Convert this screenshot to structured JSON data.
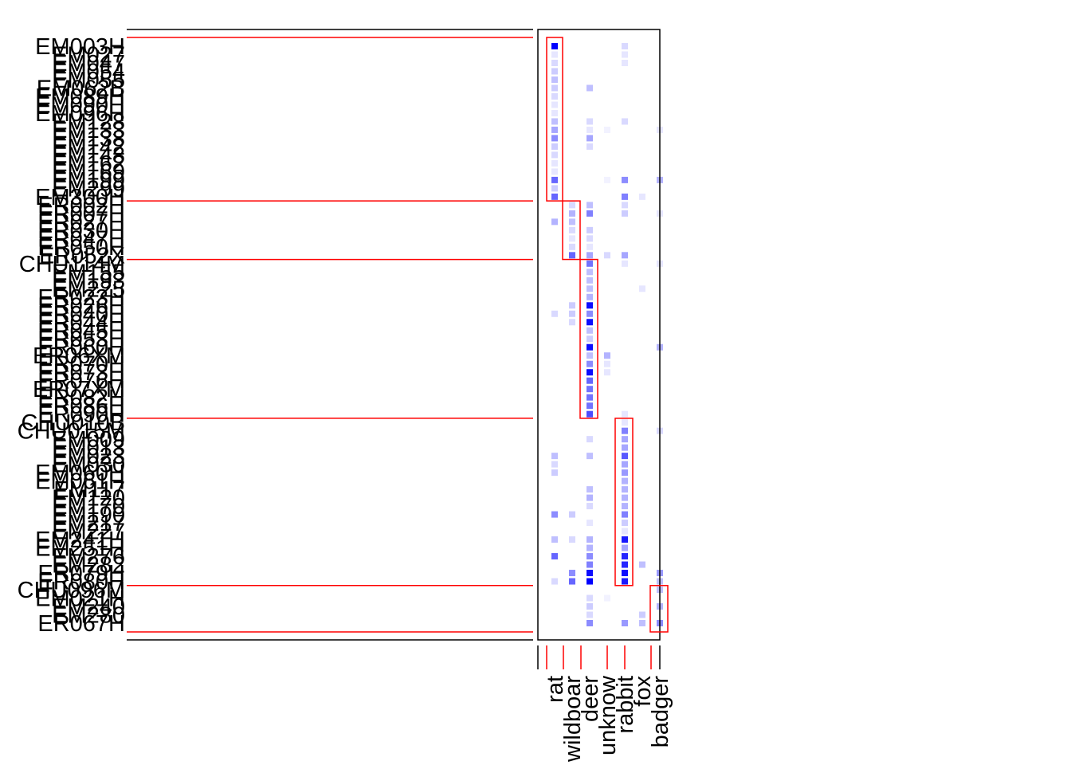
{
  "chart_data": {
    "type": "heatmap",
    "columns": [
      "rat",
      "wildboar",
      "deer",
      "unknow",
      "rabbit",
      "fox",
      "badger"
    ],
    "rows": [
      "EM003H",
      "EM027",
      "EM047",
      "EM054",
      "EM055",
      "EM062B",
      "EM089H",
      "EM090H",
      "EM096H",
      "EM128",
      "EM133",
      "EM138",
      "EM142",
      "EM148",
      "EM162",
      "EM169",
      "EM199",
      "EM299",
      "EM300H",
      "ER002H",
      "ER007H",
      "ER027H",
      "ER030H",
      "ER047H",
      "ER050H",
      "ER052X",
      "CHU114M",
      "EM155",
      "EM193",
      "EM225",
      "ER023H",
      "ER026H",
      "ER040H",
      "ER044H",
      "ER045H",
      "ER053H",
      "ER060H",
      "ER06XM",
      "ER070H",
      "ER073H",
      "ER076H",
      "ER07XM",
      "ER082H",
      "ER086H",
      "ER090H",
      "CHU010B",
      "CHU015M",
      "EM009",
      "EM013",
      "EM023",
      "EM030",
      "EM060H",
      "EM061H",
      "EM117",
      "EM120",
      "EM170",
      "EM190",
      "EM217",
      "EM227",
      "EM241H",
      "EM251H",
      "EM276",
      "EM282",
      "ER079H",
      "ER080H",
      "CHU096M",
      "EM021H",
      "EM240",
      "EM280",
      "ER067H"
    ],
    "groups": [
      {
        "column": "rat",
        "rows_from": 0,
        "rows_to": 18
      },
      {
        "column": "wildboar",
        "rows_from": 19,
        "rows_to": 25
      },
      {
        "column": "deer",
        "rows_from": 26,
        "rows_to": 44
      },
      {
        "column": "rabbit",
        "rows_from": 45,
        "rows_to": 64
      },
      {
        "column": "badger",
        "rows_from": 65,
        "rows_to": 69
      }
    ],
    "cells": [
      [
        0,
        0,
        1.0
      ],
      [
        0,
        4,
        0.15
      ],
      [
        1,
        0,
        0.1
      ],
      [
        1,
        4,
        0.1
      ],
      [
        2,
        0,
        0.15
      ],
      [
        2,
        4,
        0.1
      ],
      [
        3,
        0,
        0.2
      ],
      [
        4,
        0,
        0.25
      ],
      [
        5,
        0,
        0.2
      ],
      [
        5,
        2,
        0.25
      ],
      [
        6,
        0,
        0.15
      ],
      [
        7,
        0,
        0.1
      ],
      [
        8,
        0,
        0.1
      ],
      [
        9,
        0,
        0.25
      ],
      [
        9,
        2,
        0.15
      ],
      [
        9,
        4,
        0.15
      ],
      [
        10,
        0,
        0.35
      ],
      [
        10,
        2,
        0.1
      ],
      [
        10,
        3,
        0.05
      ],
      [
        10,
        6,
        0.1
      ],
      [
        11,
        0,
        0.45
      ],
      [
        11,
        2,
        0.35
      ],
      [
        12,
        0,
        0.2
      ],
      [
        12,
        2,
        0.15
      ],
      [
        13,
        0,
        0.15
      ],
      [
        14,
        0,
        0.1
      ],
      [
        15,
        0,
        0.1
      ],
      [
        16,
        0,
        0.6
      ],
      [
        16,
        3,
        0.05
      ],
      [
        16,
        4,
        0.45
      ],
      [
        16,
        6,
        0.3
      ],
      [
        17,
        0,
        0.2
      ],
      [
        18,
        0,
        0.6
      ],
      [
        18,
        4,
        0.5
      ],
      [
        18,
        5,
        0.1
      ],
      [
        19,
        1,
        0.15
      ],
      [
        19,
        2,
        0.25
      ],
      [
        19,
        4,
        0.15
      ],
      [
        20,
        1,
        0.3
      ],
      [
        20,
        2,
        0.5
      ],
      [
        20,
        4,
        0.2
      ],
      [
        20,
        6,
        0.1
      ],
      [
        21,
        0,
        0.3
      ],
      [
        21,
        1,
        0.25
      ],
      [
        22,
        1,
        0.15
      ],
      [
        22,
        2,
        0.2
      ],
      [
        23,
        1,
        0.1
      ],
      [
        23,
        2,
        0.15
      ],
      [
        24,
        1,
        0.15
      ],
      [
        24,
        2,
        0.1
      ],
      [
        25,
        1,
        0.6
      ],
      [
        25,
        2,
        0.35
      ],
      [
        25,
        3,
        0.15
      ],
      [
        25,
        4,
        0.35
      ],
      [
        26,
        2,
        0.55
      ],
      [
        26,
        4,
        0.1
      ],
      [
        26,
        6,
        0.1
      ],
      [
        27,
        2,
        0.25
      ],
      [
        28,
        2,
        0.25
      ],
      [
        29,
        2,
        0.25
      ],
      [
        29,
        5,
        0.1
      ],
      [
        30,
        2,
        0.3
      ],
      [
        31,
        1,
        0.2
      ],
      [
        31,
        2,
        0.95
      ],
      [
        32,
        0,
        0.15
      ],
      [
        32,
        1,
        0.2
      ],
      [
        32,
        2,
        0.45
      ],
      [
        33,
        1,
        0.15
      ],
      [
        33,
        2,
        0.95
      ],
      [
        34,
        2,
        0.25
      ],
      [
        35,
        2,
        0.2
      ],
      [
        36,
        2,
        0.95
      ],
      [
        36,
        6,
        0.3
      ],
      [
        37,
        2,
        0.25
      ],
      [
        37,
        3,
        0.3
      ],
      [
        38,
        2,
        0.45
      ],
      [
        38,
        3,
        0.1
      ],
      [
        39,
        2,
        0.95
      ],
      [
        39,
        3,
        0.1
      ],
      [
        40,
        2,
        0.6
      ],
      [
        41,
        2,
        0.55
      ],
      [
        42,
        2,
        0.55
      ],
      [
        43,
        2,
        0.55
      ],
      [
        44,
        2,
        0.7
      ],
      [
        44,
        4,
        0.1
      ],
      [
        45,
        4,
        0.1
      ],
      [
        46,
        4,
        0.5
      ],
      [
        46,
        6,
        0.15
      ],
      [
        47,
        2,
        0.15
      ],
      [
        47,
        4,
        0.35
      ],
      [
        48,
        4,
        0.35
      ],
      [
        49,
        0,
        0.25
      ],
      [
        49,
        2,
        0.25
      ],
      [
        49,
        4,
        0.65
      ],
      [
        50,
        0,
        0.15
      ],
      [
        50,
        4,
        0.35
      ],
      [
        51,
        0,
        0.2
      ],
      [
        51,
        4,
        0.4
      ],
      [
        52,
        4,
        0.3
      ],
      [
        53,
        2,
        0.25
      ],
      [
        53,
        4,
        0.3
      ],
      [
        54,
        2,
        0.3
      ],
      [
        54,
        4,
        0.3
      ],
      [
        55,
        2,
        0.15
      ],
      [
        55,
        4,
        0.3
      ],
      [
        56,
        0,
        0.45
      ],
      [
        56,
        1,
        0.2
      ],
      [
        56,
        4,
        0.5
      ],
      [
        57,
        2,
        0.1
      ],
      [
        57,
        4,
        0.2
      ],
      [
        58,
        4,
        0.1
      ],
      [
        59,
        0,
        0.25
      ],
      [
        59,
        1,
        0.15
      ],
      [
        59,
        2,
        0.3
      ],
      [
        59,
        4,
        0.9
      ],
      [
        60,
        2,
        0.3
      ],
      [
        60,
        4,
        0.35
      ],
      [
        61,
        0,
        0.6
      ],
      [
        61,
        2,
        0.45
      ],
      [
        61,
        4,
        0.85
      ],
      [
        62,
        2,
        0.5
      ],
      [
        62,
        4,
        0.85
      ],
      [
        62,
        5,
        0.25
      ],
      [
        63,
        1,
        0.45
      ],
      [
        63,
        2,
        0.95
      ],
      [
        63,
        4,
        0.95
      ],
      [
        63,
        6,
        0.4
      ],
      [
        64,
        0,
        0.15
      ],
      [
        64,
        1,
        0.6
      ],
      [
        64,
        2,
        1.0
      ],
      [
        64,
        4,
        0.9
      ],
      [
        64,
        6,
        0.25
      ],
      [
        65,
        6,
        0.25
      ],
      [
        66,
        2,
        0.15
      ],
      [
        66,
        3,
        0.05
      ],
      [
        67,
        2,
        0.2
      ],
      [
        67,
        6,
        0.3
      ],
      [
        68,
        2,
        0.15
      ],
      [
        68,
        5,
        0.2
      ],
      [
        69,
        2,
        0.45
      ],
      [
        69,
        4,
        0.4
      ],
      [
        69,
        5,
        0.25
      ],
      [
        69,
        6,
        0.45
      ]
    ]
  }
}
